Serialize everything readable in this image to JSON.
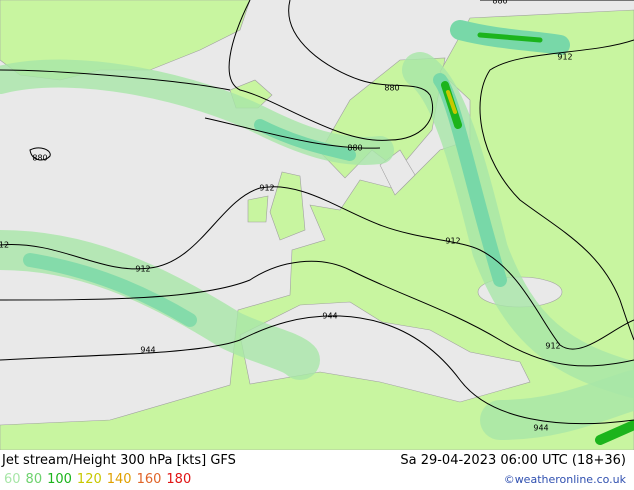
{
  "map": {
    "contours": [
      {
        "label": "880"
      },
      {
        "label": "880"
      },
      {
        "label": "880"
      },
      {
        "label": "880"
      },
      {
        "label": "912"
      },
      {
        "label": "912"
      },
      {
        "label": "912"
      },
      {
        "label": "912"
      },
      {
        "label": "12"
      },
      {
        "label": "912"
      },
      {
        "label": "944"
      },
      {
        "label": "944"
      },
      {
        "label": "944"
      }
    ]
  },
  "footer": {
    "title": "Jet stream/Height 300 hPa [kts] GFS",
    "datetime": "Sa 29-04-2023 06:00 UTC (18+36)",
    "credit": "©weatheronline.co.uk",
    "legend": [
      {
        "label": "60",
        "color": "#a8e6a8"
      },
      {
        "label": "80",
        "color": "#6ed26e"
      },
      {
        "label": "100",
        "color": "#1cb41c"
      },
      {
        "label": "120",
        "color": "#c8c800"
      },
      {
        "label": "140",
        "color": "#e0a000"
      },
      {
        "label": "160",
        "color": "#e06428"
      },
      {
        "label": "180",
        "color": "#e01414"
      }
    ]
  }
}
